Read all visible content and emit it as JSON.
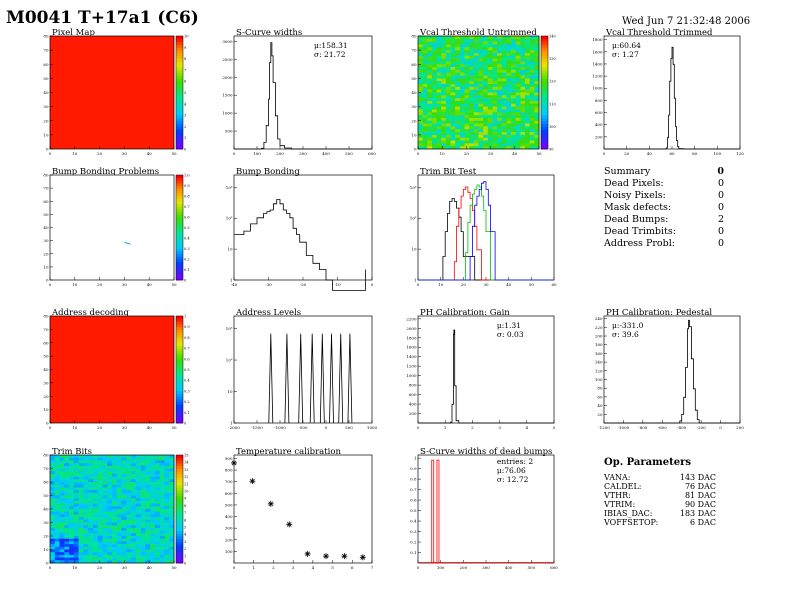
{
  "title": "M0041 T+17a1 (C6)",
  "date": "Wed Jun  7 21:32:48 2006",
  "colors": {
    "frame": "#000000",
    "red": "#ff0000",
    "green": "#00c000",
    "blue": "#0000ff"
  },
  "panels": [
    {
      "title": "Pixel Map",
      "type": "heatmap",
      "xticks": [
        "0",
        "10",
        "20",
        "30",
        "40",
        "50"
      ],
      "yticks": [
        "0",
        "10",
        "20",
        "30",
        "40",
        "50",
        "60",
        "70",
        "80"
      ],
      "zticks": [
        "0",
        "1",
        "2",
        "3",
        "4",
        "5",
        "6",
        "7",
        "8",
        "9",
        "10"
      ],
      "fill": "uniform-red"
    },
    {
      "title": "S-Curve widths",
      "type": "line",
      "mean": "μ:158.31",
      "rms": "σ: 21.72",
      "xticks": [
        "0",
        "100",
        "200",
        "300",
        "400",
        "500",
        "600"
      ],
      "yticks": [
        "500",
        "1000",
        "1500",
        "2000",
        "2500",
        "3000"
      ],
      "x": [
        0,
        100,
        120,
        130,
        140,
        150,
        155,
        160,
        165,
        170,
        180,
        190,
        200,
        220,
        250,
        300,
        600
      ],
      "y": [
        0,
        0,
        20,
        200,
        700,
        1500,
        2600,
        3200,
        2800,
        2000,
        1000,
        300,
        100,
        30,
        0,
        0,
        0
      ],
      "xlim": [
        0,
        600
      ],
      "ylim": [
        0,
        3400
      ]
    },
    {
      "title": "Vcal Threshold Untrimmed",
      "type": "heatmap",
      "xticks": [
        "0",
        "10",
        "20",
        "30",
        "40",
        "50"
      ],
      "yticks": [
        "0",
        "10",
        "20",
        "30",
        "40",
        "50",
        "60",
        "70",
        "80"
      ],
      "zticks": [
        "90",
        "100",
        "110",
        "120",
        "130",
        "140"
      ],
      "fill": "noise-green"
    },
    {
      "title": "Vcal Threshold Trimmed",
      "type": "line",
      "mean": "μ:60.64",
      "rms": "σ: 1.27",
      "xticks": [
        "0",
        "20",
        "40",
        "60",
        "80",
        "100",
        "120"
      ],
      "yticks": [
        "200",
        "400",
        "600",
        "800",
        "1000",
        "1200",
        "1400",
        "1600",
        "1800"
      ],
      "x": [
        0,
        50,
        55,
        56,
        57,
        58,
        59,
        60,
        61,
        62,
        63,
        64,
        65,
        66,
        70,
        120
      ],
      "y": [
        0,
        0,
        20,
        200,
        600,
        1200,
        1600,
        1800,
        1500,
        900,
        400,
        150,
        40,
        5,
        0,
        0
      ],
      "xlim": [
        0,
        120
      ],
      "ylim": [
        0,
        2000
      ]
    },
    {
      "title": "Bump Bonding Problems",
      "type": "heatmap",
      "xticks": [
        "0",
        "10",
        "20",
        "30",
        "40",
        "50"
      ],
      "yticks": [
        "0",
        "10",
        "20",
        "30",
        "40",
        "50",
        "60",
        "70",
        "80"
      ],
      "zticks": [
        "0",
        "0.1",
        "0.2",
        "0.3",
        "0.4",
        "0.5",
        "0.6",
        "0.7",
        "0.8",
        "0.9",
        "1.0"
      ],
      "fill": "blank"
    },
    {
      "title": "Bump Bonding",
      "type": "line",
      "xticks": [
        "-40",
        "-30",
        "-20",
        "-10",
        "0"
      ],
      "yticks": [
        "1",
        "10",
        "10²",
        "10³"
      ],
      "log": true,
      "x": [
        -40,
        -37,
        -35,
        -33,
        -31,
        -30,
        -29,
        -28,
        -27,
        -26,
        -25,
        -24,
        -23,
        -22,
        -21,
        -20,
        -18,
        -16,
        -14,
        -12,
        -10,
        -5,
        0
      ],
      "y": [
        20,
        25,
        40,
        60,
        80,
        90,
        100,
        150,
        200,
        150,
        100,
        80,
        60,
        30,
        20,
        12,
        5,
        3,
        2,
        1,
        0.5,
        0.5,
        2
      ],
      "xlim": [
        -40,
        2
      ],
      "ylim": [
        1,
        1000
      ]
    },
    {
      "title": "Trim Bit Test",
      "type": "multiline",
      "xticks": [
        "0",
        "10",
        "20",
        "30",
        "40",
        "50",
        "60"
      ],
      "yticks": [
        "1",
        "10",
        "10²",
        "10³"
      ],
      "log": true,
      "xlim": [
        0,
        60
      ],
      "ylim": [
        0.5,
        1500
      ],
      "series": [
        {
          "color": "#000000",
          "x": [
            0,
            10,
            11,
            12,
            13,
            14,
            15,
            16,
            17,
            18,
            19,
            20,
            25,
            60
          ],
          "y": [
            0.5,
            0.5,
            3,
            20,
            80,
            200,
            250,
            200,
            120,
            60,
            20,
            3,
            0.5,
            0.5
          ]
        },
        {
          "color": "#ff0000",
          "x": [
            0,
            15,
            16,
            17,
            18,
            19,
            20,
            21,
            22,
            23,
            24,
            25,
            26,
            28,
            60
          ],
          "y": [
            0.5,
            0.5,
            2,
            30,
            120,
            300,
            500,
            600,
            400,
            250,
            100,
            30,
            5,
            0.5,
            0.5
          ]
        },
        {
          "color": "#00c000",
          "x": [
            0,
            20,
            21,
            22,
            23,
            24,
            25,
            26,
            27,
            28,
            29,
            30,
            32,
            60
          ],
          "y": [
            0.5,
            0.5,
            4,
            40,
            150,
            350,
            500,
            700,
            600,
            300,
            100,
            20,
            0.5,
            0.5
          ]
        },
        {
          "color": "#0000ff",
          "x": [
            0,
            22,
            23,
            24,
            25,
            26,
            27,
            28,
            29,
            30,
            31,
            32,
            34,
            60
          ],
          "y": [
            0.5,
            0.5,
            3,
            30,
            150,
            300,
            500,
            800,
            900,
            500,
            150,
            20,
            0.5,
            0.5
          ]
        }
      ]
    },
    {
      "title": "Address decoding",
      "type": "heatmap",
      "xticks": [
        "0",
        "10",
        "20",
        "30",
        "40",
        "50"
      ],
      "yticks": [
        "0",
        "10",
        "20",
        "30",
        "40",
        "50",
        "60",
        "70",
        "80"
      ],
      "zticks": [
        "0",
        "0.1",
        "0.2",
        "0.3",
        "0.4",
        "0.5",
        "0.6",
        "0.7",
        "0.8",
        "0.9",
        "1"
      ],
      "fill": "uniform-red"
    },
    {
      "title": "Address Levels",
      "type": "spikes",
      "xticks": [
        "-2000",
        "-1500",
        "-1000",
        "-500",
        "0",
        "500",
        "1000"
      ],
      "yticks": [
        "1",
        "10",
        "10²",
        "10³"
      ],
      "log": true,
      "xlim": [
        -2000,
        1000
      ],
      "ylim": [
        0.5,
        1500
      ],
      "spikes": [
        -1200,
        -850,
        -550,
        -300,
        -80,
        120,
        320,
        520
      ],
      "height": 400
    },
    {
      "title": "PH Calibration: Gain",
      "type": "line",
      "mean": "μ:1.31",
      "rms": "σ: 0.03",
      "xticks": [
        "0",
        "1",
        "2",
        "3",
        "4",
        "5"
      ],
      "yticks": [
        "200",
        "400",
        "600",
        "800",
        "1000",
        "1200",
        "1400",
        "1600",
        "1800",
        "2000",
        "2200"
      ],
      "x": [
        0,
        1.1,
        1.2,
        1.25,
        1.3,
        1.32,
        1.35,
        1.4,
        1.5,
        5
      ],
      "y": [
        0,
        0,
        20,
        400,
        1900,
        2000,
        800,
        50,
        0,
        0
      ],
      "xlim": [
        0,
        5
      ],
      "ylim": [
        0,
        2300
      ]
    },
    {
      "title": "PH Calibration: Pedestal",
      "type": "line",
      "mean": "μ:-331.0",
      "rms": "σ: 39.6",
      "xticks": [
        "-1200",
        "-1000",
        "-800",
        "-600",
        "-400",
        "-200",
        "0",
        "200"
      ],
      "yticks": [
        "20",
        "40",
        "60",
        "80",
        "100",
        "120",
        "140",
        "160",
        "180",
        "200",
        "220",
        "240"
      ],
      "x": [
        -1200,
        -450,
        -420,
        -400,
        -380,
        -360,
        -340,
        -330,
        -320,
        -300,
        -280,
        -260,
        -240,
        -220,
        200
      ],
      "y": [
        0,
        0,
        5,
        20,
        60,
        130,
        220,
        240,
        225,
        150,
        80,
        30,
        8,
        0,
        0
      ],
      "xlim": [
        -1200,
        200
      ],
      "ylim": [
        0,
        250
      ]
    },
    {
      "title": "Trim Bits",
      "type": "heatmap",
      "xticks": [
        "0",
        "10",
        "20",
        "30",
        "40",
        "50"
      ],
      "yticks": [
        "0",
        "10",
        "20",
        "30",
        "40",
        "50",
        "60",
        "70",
        "80"
      ],
      "zticks": [
        "0",
        "1",
        "2",
        "3",
        "4",
        "5",
        "6",
        "7",
        "8",
        "9",
        "10",
        "11",
        "12",
        "13",
        "14",
        "15"
      ],
      "fill": "noise-cyan"
    },
    {
      "title": "Temperature calibration",
      "type": "scatter",
      "xticks": [
        "0",
        "1",
        "2",
        "3",
        "4",
        "5",
        "6",
        "7"
      ],
      "yticks": [
        "100",
        "200",
        "300",
        "400",
        "500",
        "600",
        "700",
        "800",
        "900"
      ],
      "x": [
        0,
        1,
        2,
        3,
        4,
        5,
        6,
        7
      ],
      "y": [
        880,
        720,
        520,
        340,
        80,
        60,
        60,
        50
      ],
      "xlim": [
        0,
        7.5
      ],
      "ylim": [
        0,
        950
      ]
    },
    {
      "title": "S-Curve widths of dead bumps",
      "type": "redspikes",
      "entries": "entries:    2",
      "mean": "μ:76.06",
      "rms": "σ: 12.72",
      "xticks": [
        "0",
        "100",
        "200",
        "300",
        "400",
        "500",
        "600"
      ],
      "yticks": [
        "0.1",
        "0.2",
        "0.3",
        "0.4",
        "0.5",
        "0.6",
        "0.7",
        "0.8",
        "0.9",
        "1"
      ],
      "spikes": [
        65,
        88
      ],
      "xlim": [
        0,
        600
      ],
      "ylim": [
        0,
        1.05
      ]
    }
  ],
  "summary": {
    "title": "Summary",
    "title_value": "0",
    "rows": [
      {
        "label": "Dead Pixels:",
        "value": "0"
      },
      {
        "label": "Noisy Pixels:",
        "value": "0"
      },
      {
        "label": "Mask defects:",
        "value": "0"
      },
      {
        "label": "Dead Bumps:",
        "value": "2"
      },
      {
        "label": "Dead Trimbits:",
        "value": "0"
      },
      {
        "label": "Address Probl:",
        "value": "0"
      }
    ]
  },
  "params": {
    "title": "Op. Parameters",
    "rows": [
      {
        "label": "VANA:",
        "value": "143 DAC"
      },
      {
        "label": "CALDEL:",
        "value": "76 DAC"
      },
      {
        "label": "VTHR:",
        "value": "81 DAC"
      },
      {
        "label": "VTRIM:",
        "value": "90 DAC"
      },
      {
        "label": "IBIAS_DAC:",
        "value": "183 DAC"
      },
      {
        "label": "VOFFSETOP:",
        "value": "6 DAC"
      }
    ]
  }
}
